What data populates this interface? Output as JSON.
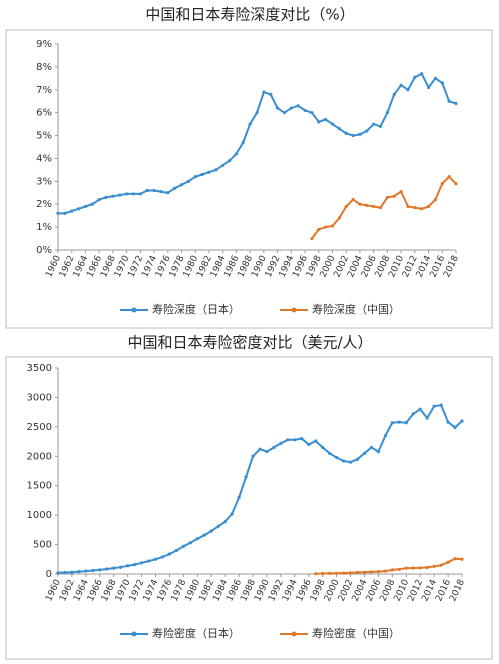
{
  "chart_data": [
    {
      "type": "line",
      "title": "中国和日本寿险深度对比（%）",
      "xlim": [
        1960,
        2018
      ],
      "xticks": [
        1960,
        1962,
        1964,
        1966,
        1968,
        1970,
        1972,
        1974,
        1976,
        1978,
        1980,
        1982,
        1984,
        1986,
        1988,
        1990,
        1992,
        1994,
        1996,
        1998,
        2000,
        2002,
        2004,
        2006,
        2008,
        2010,
        2012,
        2014,
        2016,
        2018
      ],
      "ylim": [
        0,
        9
      ],
      "yticks": [
        {
          "value": 0,
          "label": "0%"
        },
        {
          "value": 1,
          "label": "1%"
        },
        {
          "value": 2,
          "label": "2%"
        },
        {
          "value": 3,
          "label": "3%"
        },
        {
          "value": 4,
          "label": "4%"
        },
        {
          "value": 5,
          "label": "5%"
        },
        {
          "value": 6,
          "label": "6%"
        },
        {
          "value": 7,
          "label": "7%"
        },
        {
          "value": 8,
          "label": "8%"
        },
        {
          "value": 9,
          "label": "9%"
        }
      ],
      "x": [
        1960,
        1961,
        1962,
        1963,
        1964,
        1965,
        1966,
        1967,
        1968,
        1969,
        1970,
        1971,
        1972,
        1973,
        1974,
        1975,
        1976,
        1977,
        1978,
        1979,
        1980,
        1981,
        1982,
        1983,
        1984,
        1985,
        1986,
        1987,
        1988,
        1989,
        1990,
        1991,
        1992,
        1993,
        1994,
        1995,
        1996,
        1997,
        1998,
        1999,
        2000,
        2001,
        2002,
        2003,
        2004,
        2005,
        2006,
        2007,
        2008,
        2009,
        2010,
        2011,
        2012,
        2013,
        2014,
        2015,
        2016,
        2017,
        2018
      ],
      "series": [
        {
          "name": "寿险深度（日本）",
          "color": "#3a8ed0",
          "values": [
            1.6,
            1.6,
            1.7,
            1.8,
            1.9,
            2.0,
            2.2,
            2.3,
            2.35,
            2.4,
            2.45,
            2.45,
            2.45,
            2.6,
            2.6,
            2.55,
            2.5,
            2.7,
            2.85,
            3.0,
            3.2,
            3.3,
            3.4,
            3.5,
            3.7,
            3.9,
            4.2,
            4.7,
            5.5,
            6.0,
            6.9,
            6.8,
            6.2,
            6.0,
            6.2,
            6.3,
            6.1,
            6.0,
            5.6,
            5.7,
            5.5,
            5.3,
            5.1,
            5.0,
            5.05,
            5.2,
            5.5,
            5.4,
            6.0,
            6.8,
            7.2,
            7.0,
            7.55,
            7.7,
            7.1,
            7.5,
            7.3,
            6.5,
            6.4
          ]
        },
        {
          "name": "寿险深度（中国）",
          "color": "#e0782a",
          "values": [
            null,
            null,
            null,
            null,
            null,
            null,
            null,
            null,
            null,
            null,
            null,
            null,
            null,
            null,
            null,
            null,
            null,
            null,
            null,
            null,
            null,
            null,
            null,
            null,
            null,
            null,
            null,
            null,
            null,
            null,
            null,
            null,
            null,
            null,
            null,
            null,
            null,
            0.5,
            0.9,
            1.0,
            1.05,
            1.4,
            1.9,
            2.2,
            2.0,
            1.95,
            1.9,
            1.85,
            2.3,
            2.35,
            2.55,
            1.9,
            1.85,
            1.8,
            1.9,
            2.2,
            2.9,
            3.2,
            2.9
          ]
        }
      ]
    },
    {
      "type": "line",
      "title": "中国和日本寿险密度对比（美元/人）",
      "xlim": [
        1960,
        2018
      ],
      "xticks": [
        1960,
        1962,
        1964,
        1966,
        1968,
        1970,
        1972,
        1974,
        1976,
        1978,
        1980,
        1982,
        1984,
        1986,
        1988,
        1990,
        1992,
        1994,
        1996,
        1998,
        2000,
        2002,
        2004,
        2006,
        2008,
        2010,
        2012,
        2014,
        2016,
        2018
      ],
      "ylim": [
        0,
        3500
      ],
      "yticks": [
        0,
        500,
        1000,
        1500,
        2000,
        2500,
        3000,
        3500
      ],
      "x": [
        1960,
        1961,
        1962,
        1963,
        1964,
        1965,
        1966,
        1967,
        1968,
        1969,
        1970,
        1971,
        1972,
        1973,
        1974,
        1975,
        1976,
        1977,
        1978,
        1979,
        1980,
        1981,
        1982,
        1983,
        1984,
        1985,
        1986,
        1987,
        1988,
        1989,
        1990,
        1991,
        1992,
        1993,
        1994,
        1995,
        1996,
        1997,
        1998,
        1999,
        2000,
        2001,
        2002,
        2003,
        2004,
        2005,
        2006,
        2007,
        2008,
        2009,
        2010,
        2011,
        2012,
        2013,
        2014,
        2015,
        2016,
        2017,
        2018
      ],
      "series": [
        {
          "name": "寿险密度（日本）",
          "color": "#3a8ed0",
          "values": [
            20,
            25,
            30,
            40,
            50,
            60,
            70,
            85,
            100,
            115,
            140,
            160,
            190,
            220,
            250,
            290,
            340,
            400,
            470,
            530,
            600,
            660,
            730,
            810,
            890,
            1020,
            1300,
            1650,
            2000,
            2120,
            2080,
            2150,
            2220,
            2280,
            2280,
            2300,
            2200,
            2260,
            2150,
            2050,
            1980,
            1920,
            1900,
            1950,
            2050,
            2150,
            2080,
            2350,
            2570,
            2580,
            2570,
            2720,
            2800,
            2650,
            2850,
            2870,
            2580,
            2490,
            2600
          ]
        },
        {
          "name": "寿险密度（中国）",
          "color": "#e0782a",
          "values": [
            null,
            null,
            null,
            null,
            null,
            null,
            null,
            null,
            null,
            null,
            null,
            null,
            null,
            null,
            null,
            null,
            null,
            null,
            null,
            null,
            null,
            null,
            null,
            null,
            null,
            null,
            null,
            null,
            null,
            null,
            null,
            null,
            null,
            null,
            null,
            null,
            null,
            5,
            8,
            10,
            12,
            15,
            20,
            25,
            30,
            35,
            40,
            50,
            70,
            80,
            100,
            100,
            105,
            110,
            130,
            150,
            200,
            260,
            250
          ]
        }
      ]
    }
  ]
}
